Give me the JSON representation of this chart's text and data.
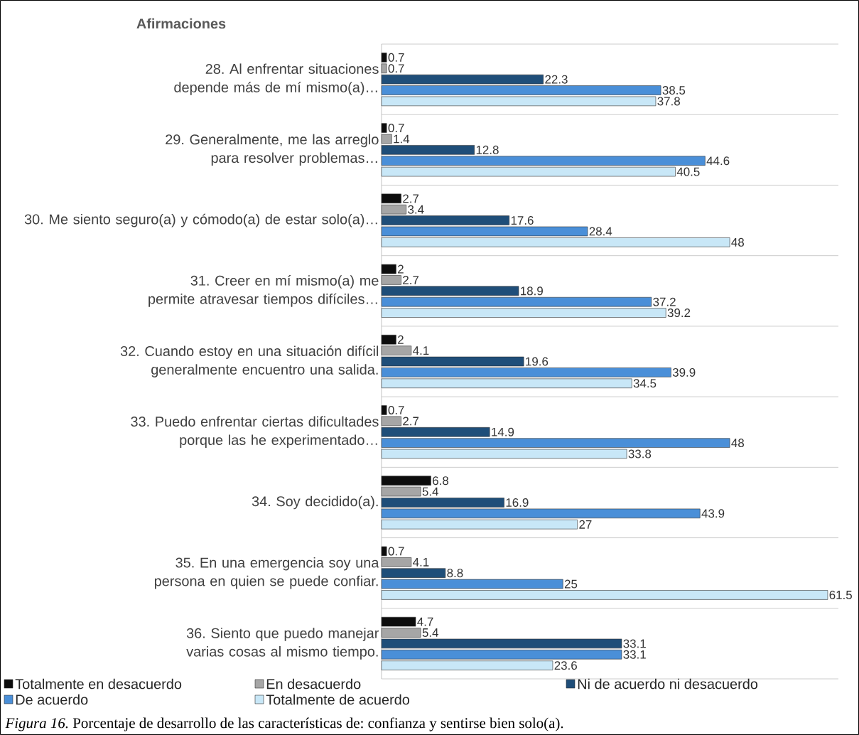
{
  "chart_data": {
    "type": "bar",
    "orientation": "horizontal",
    "ylabel": "Afirmaciones",
    "categories": [
      "28. Al enfrentar situaciones depende más de mí mismo(a)…",
      "29. Generalmente, me las arreglo para resolver problemas…",
      "30. Me siento seguro(a) y cómodo(a) de estar solo(a)…",
      "31. Creer en mí mismo(a) me permite atravesar tiempos difíciles…",
      "32. Cuando estoy en una situación difícil generalmente encuentro una salida.",
      "33. Puedo enfrentar ciertas dificultades porque las he experimentado…",
      "34. Soy decidido(a).",
      "35. En una emergencia soy una persona en quien se puede confiar.",
      "36. Siento que puedo manejar varias cosas al mismo tiempo."
    ],
    "series": [
      {
        "name": "Totalmente en desacuerdo",
        "color": "#0d0d0d",
        "values": [
          0.7,
          0.7,
          2.7,
          2,
          2,
          0.7,
          6.8,
          0.7,
          4.7
        ]
      },
      {
        "name": "En desacuerdo",
        "color": "#a6a6a6",
        "values": [
          0.7,
          1.4,
          3.4,
          2.7,
          4.1,
          2.7,
          5.4,
          4.1,
          5.4
        ]
      },
      {
        "name": "Ni de acuerdo ni desacuerdo",
        "color": "#1f4e79",
        "values": [
          22.3,
          12.8,
          17.6,
          18.9,
          19.6,
          14.9,
          16.9,
          8.8,
          33.1
        ]
      },
      {
        "name": "De acuerdo",
        "color": "#4a8fd8",
        "values": [
          38.5,
          44.6,
          28.4,
          37.2,
          39.9,
          48,
          43.9,
          25,
          33.1
        ]
      },
      {
        "name": "Totalmente de acuerdo",
        "color": "#c8e7f7",
        "values": [
          37.8,
          40.5,
          48,
          39.2,
          34.5,
          33.8,
          27,
          61.5,
          23.6
        ]
      }
    ],
    "data_labels": true,
    "grid": "y",
    "legend": "bottom",
    "annotations": [
      "*Figura 16.* Porcentaje de desarrollo de las características de: confianza y sentirse bien solo(a)."
    ]
  }
}
